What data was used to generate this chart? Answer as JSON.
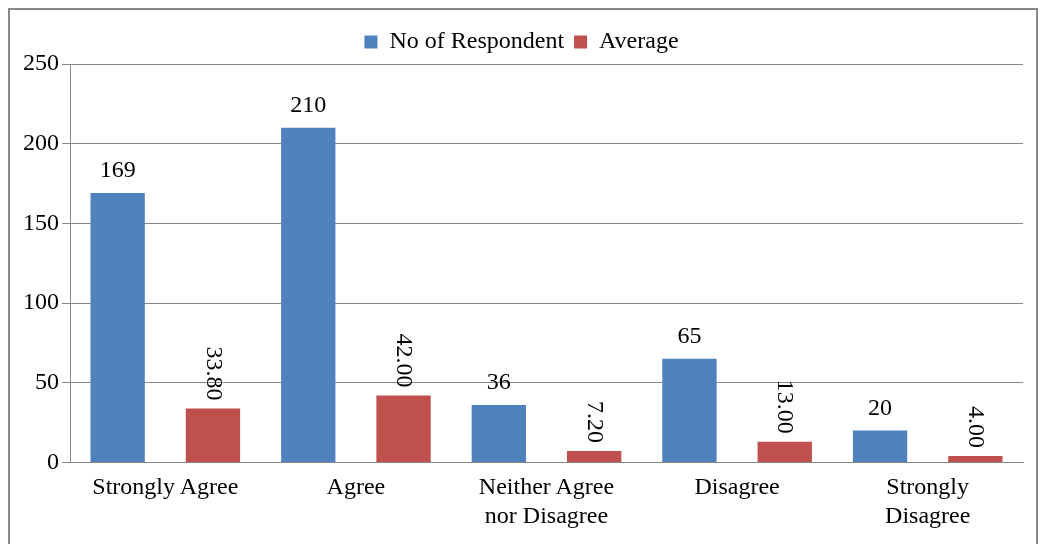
{
  "chart_data": {
    "type": "bar",
    "categories": [
      "Strongly Agree",
      "Agree",
      "Neither Agree nor Disagree",
      "Disagree",
      "Strongly Disagree"
    ],
    "series": [
      {
        "name": "No of Respondent",
        "color": "#4f81bd",
        "values": [
          169,
          210,
          36,
          65,
          20
        ],
        "value_labels": [
          "169",
          "210",
          "36",
          "65",
          "20"
        ]
      },
      {
        "name": "Average",
        "color": "#c0504d",
        "values": [
          33.8,
          42,
          7.2,
          13,
          4
        ],
        "value_labels": [
          "33.80",
          "42.00",
          "7.20",
          "13.00",
          "4.00"
        ]
      }
    ],
    "ylim": [
      0,
      250
    ],
    "yticks": [
      0,
      50,
      100,
      150,
      200,
      250
    ],
    "grid": "y",
    "legend": "top"
  }
}
